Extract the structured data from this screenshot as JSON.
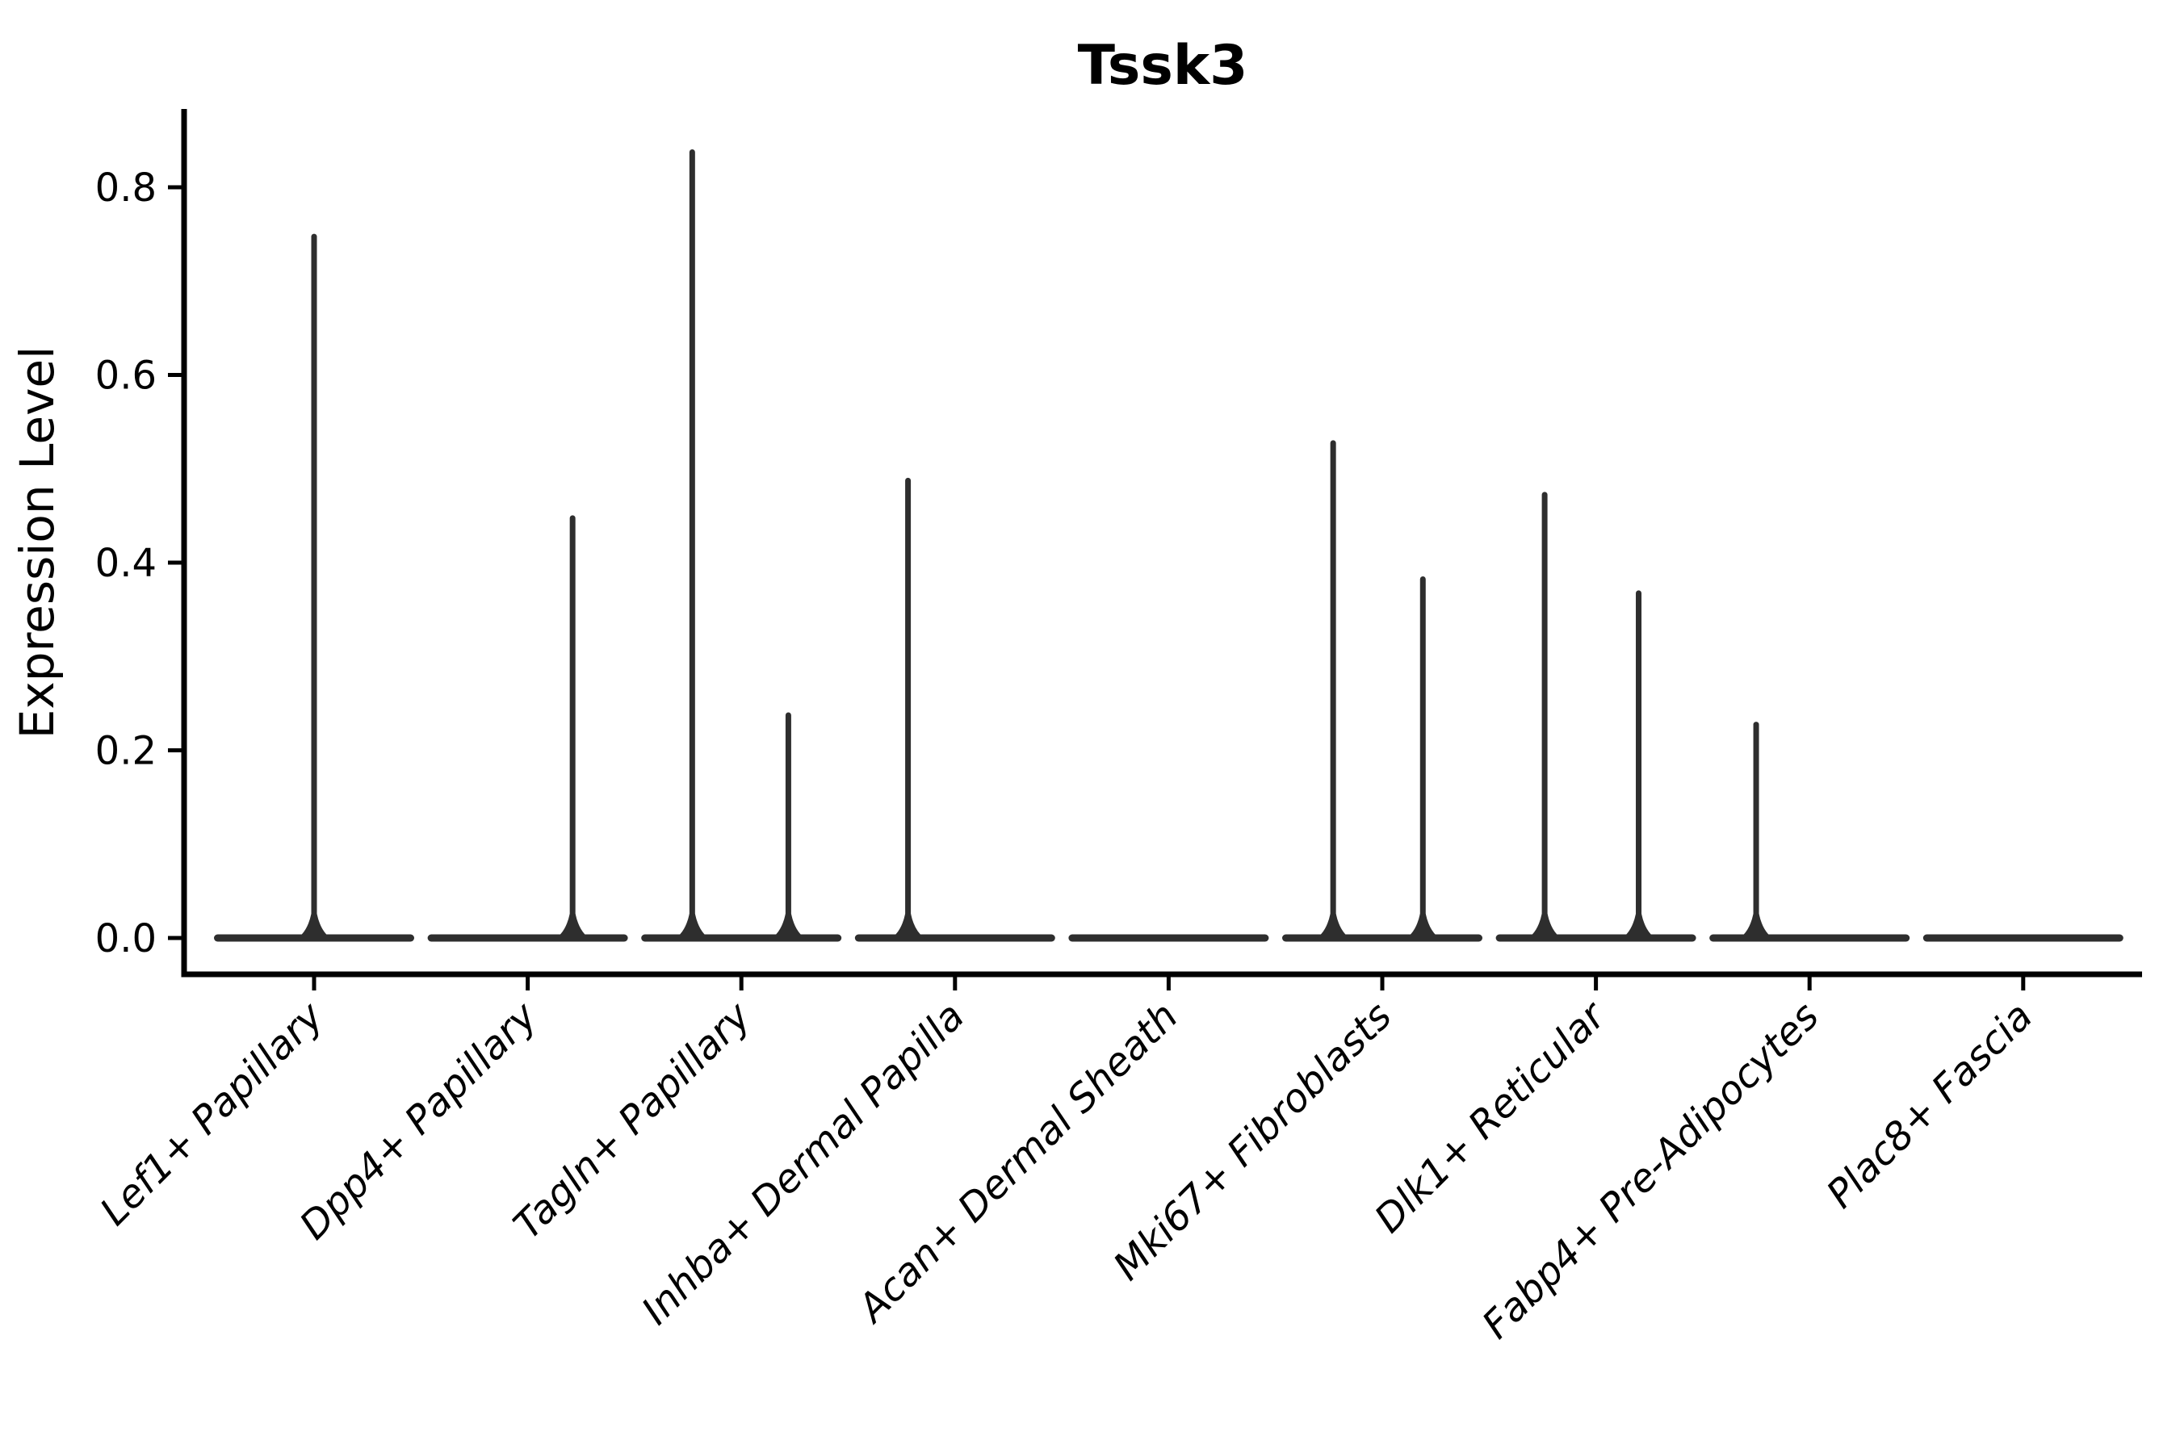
{
  "chart_data": {
    "type": "violin",
    "title": "Tssk3",
    "ylabel": "Expression Level",
    "xlabel": "",
    "categories": [
      "Lef1+ Papillary",
      "Dpp4+ Papillary",
      "Tagln+ Papillary",
      "Inhba+ Dermal Papilla",
      "Acan+ Dermal Sheath",
      "Mki67+ Fibroblasts",
      "Dlk1+ Reticular",
      "Fabp4+ Pre-Adipocytes",
      "Plac8+ Fascia"
    ],
    "y_axis": {
      "ticks": [
        "0.0",
        "0.2",
        "0.4",
        "0.6",
        "0.8"
      ],
      "tick_values": [
        0.0,
        0.2,
        0.4,
        0.6,
        0.8
      ],
      "lim": [
        -0.04,
        0.88
      ],
      "grid": false
    },
    "x_axis": {
      "rotation_deg": 45,
      "font_style": "italic"
    },
    "violins": [
      {
        "category": "Lef1+ Papillary",
        "base_value": 0.0,
        "spikes": [
          {
            "offset": 0.0,
            "max": 0.75
          }
        ]
      },
      {
        "category": "Dpp4+ Papillary",
        "base_value": 0.0,
        "spikes": [
          {
            "offset": 0.21,
            "max": 0.45
          }
        ]
      },
      {
        "category": "Tagln+ Papillary",
        "base_value": 0.0,
        "spikes": [
          {
            "offset": -0.23,
            "max": 0.84
          },
          {
            "offset": 0.22,
            "max": 0.24
          }
        ]
      },
      {
        "category": "Inhba+ Dermal Papilla",
        "base_value": 0.0,
        "spikes": [
          {
            "offset": -0.22,
            "max": 0.49
          }
        ]
      },
      {
        "category": "Acan+ Dermal Sheath",
        "base_value": 0.0,
        "spikes": []
      },
      {
        "category": "Mki67+ Fibroblasts",
        "base_value": 0.0,
        "spikes": [
          {
            "offset": -0.23,
            "max": 0.53
          },
          {
            "offset": 0.19,
            "max": 0.385
          }
        ]
      },
      {
        "category": "Dlk1+ Reticular",
        "base_value": 0.0,
        "spikes": [
          {
            "offset": -0.24,
            "max": 0.475
          },
          {
            "offset": 0.2,
            "max": 0.37
          }
        ]
      },
      {
        "category": "Fabp4+ Pre-Adipocytes",
        "base_value": 0.0,
        "spikes": [
          {
            "offset": -0.25,
            "max": 0.23
          }
        ]
      },
      {
        "category": "Plac8+ Fascia",
        "base_value": 0.0,
        "spikes": []
      }
    ],
    "legend": null,
    "colors": {
      "violin": "#2e2e2e",
      "axis": "#000000",
      "text": "#000000",
      "background": "#ffffff"
    }
  }
}
